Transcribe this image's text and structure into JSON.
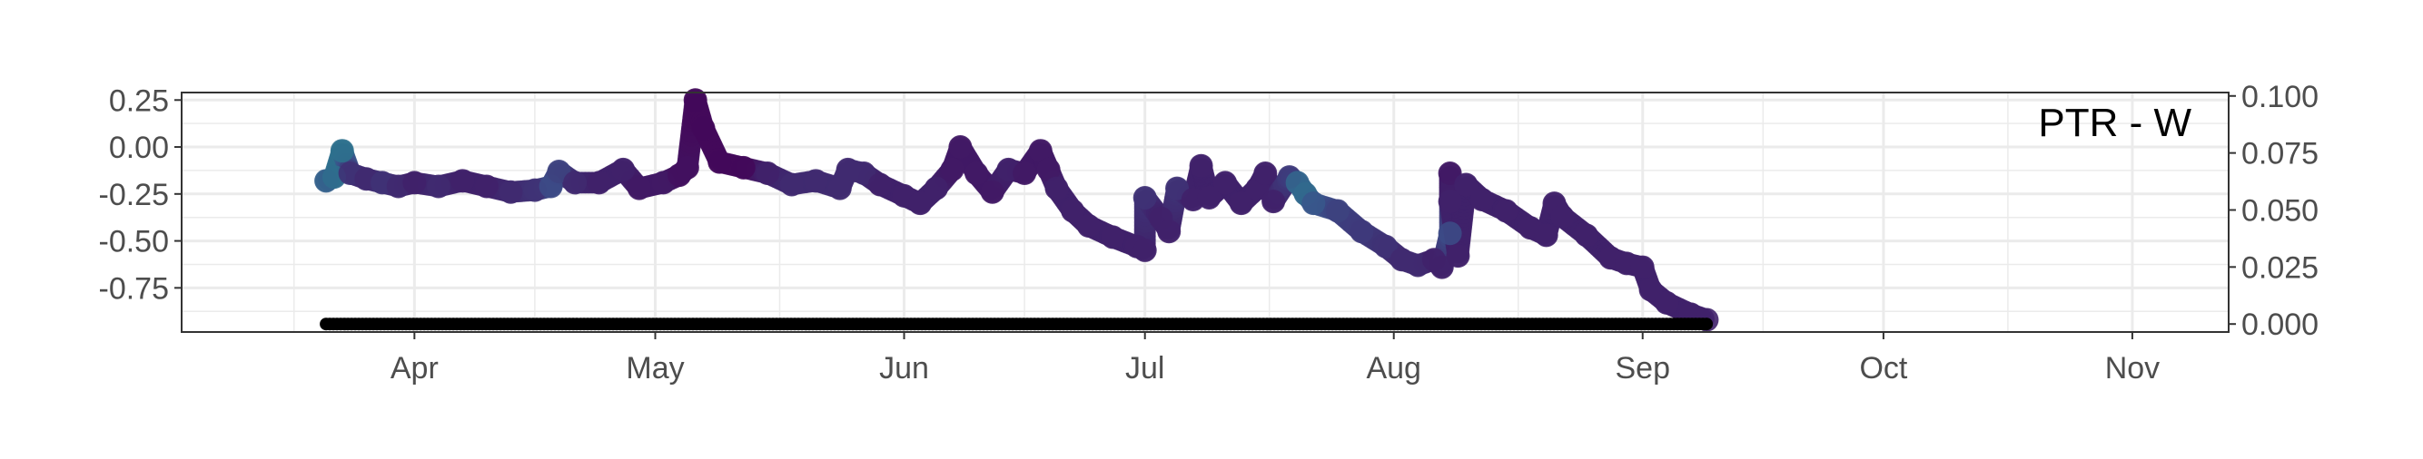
{
  "chart_data": {
    "type": "scatter",
    "title": "",
    "panel_label": "PTR - W",
    "xlabel": "",
    "ylabel": "",
    "x_axis": {
      "type": "date",
      "lim": [
        "2024-03-03",
        "2024-11-13"
      ],
      "ticks": [
        {
          "date": "2024-04-01",
          "label": "Apr"
        },
        {
          "date": "2024-05-01",
          "label": "May"
        },
        {
          "date": "2024-06-01",
          "label": "Jun"
        },
        {
          "date": "2024-07-01",
          "label": "Jul"
        },
        {
          "date": "2024-08-01",
          "label": "Aug"
        },
        {
          "date": "2024-09-01",
          "label": "Sep"
        },
        {
          "date": "2024-10-01",
          "label": "Oct"
        },
        {
          "date": "2024-11-01",
          "label": "Nov"
        }
      ]
    },
    "y_left": {
      "lim": [
        -0.985,
        0.29
      ],
      "ticks": [
        0.25,
        0.0,
        -0.25,
        -0.5,
        -0.75
      ],
      "tick_labels": [
        "0.25",
        "0.00",
        "-0.25",
        "-0.50",
        "-0.75"
      ]
    },
    "y_right": {
      "lim": [
        -0.0035,
        0.1015
      ],
      "ticks": [
        0.1,
        0.075,
        0.05,
        0.025,
        0.0
      ],
      "tick_labels": [
        "0.100",
        "0.075",
        "0.050",
        "0.025",
        "0.000"
      ]
    },
    "grid": true,
    "legend": "none",
    "colors": {
      "low": "#440154",
      "mid": "#3b528b",
      "high": "#2a788e",
      "zero_line": "#000000",
      "grid": "#ebebeb",
      "border": "#333333"
    },
    "series": [
      {
        "axis": "left",
        "style": "points-colored",
        "points": [
          [
            "2024-03-21",
            -0.18,
            0.7
          ],
          [
            "2024-03-22",
            -0.16,
            0.85
          ],
          [
            "2024-03-23",
            -0.02,
            0.9
          ],
          [
            "2024-03-24",
            -0.14,
            0.3
          ],
          [
            "2024-03-26",
            -0.17,
            0.25
          ],
          [
            "2024-03-28",
            -0.19,
            0.3
          ],
          [
            "2024-03-30",
            -0.21,
            0.25
          ],
          [
            "2024-04-01",
            -0.19,
            0.2
          ],
          [
            "2024-04-04",
            -0.21,
            0.25
          ],
          [
            "2024-04-07",
            -0.18,
            0.2
          ],
          [
            "2024-04-10",
            -0.21,
            0.2
          ],
          [
            "2024-04-13",
            -0.24,
            0.25
          ],
          [
            "2024-04-16",
            -0.23,
            0.3
          ],
          [
            "2024-04-18",
            -0.21,
            0.45
          ],
          [
            "2024-04-19",
            -0.13,
            0.4
          ],
          [
            "2024-04-21",
            -0.19,
            0.25
          ],
          [
            "2024-04-24",
            -0.19,
            0.2
          ],
          [
            "2024-04-27",
            -0.12,
            0.2
          ],
          [
            "2024-04-29",
            -0.22,
            0.15
          ],
          [
            "2024-05-02",
            -0.19,
            0.15
          ],
          [
            "2024-05-04",
            -0.15,
            0.1
          ],
          [
            "2024-05-05",
            -0.11,
            0.1
          ],
          [
            "2024-05-06",
            0.25,
            0.05
          ],
          [
            "2024-05-07",
            0.1,
            0.05
          ],
          [
            "2024-05-09",
            -0.08,
            0.05
          ],
          [
            "2024-05-12",
            -0.11,
            0.05
          ],
          [
            "2024-05-15",
            -0.14,
            0.2
          ],
          [
            "2024-05-18",
            -0.2,
            0.25
          ],
          [
            "2024-05-21",
            -0.18,
            0.25
          ],
          [
            "2024-05-24",
            -0.22,
            0.25
          ],
          [
            "2024-05-25",
            -0.12,
            0.25
          ],
          [
            "2024-05-27",
            -0.14,
            0.25
          ],
          [
            "2024-05-29",
            -0.2,
            0.2
          ],
          [
            "2024-06-01",
            -0.26,
            0.2
          ],
          [
            "2024-06-03",
            -0.3,
            0.2
          ],
          [
            "2024-06-05",
            -0.22,
            0.2
          ],
          [
            "2024-06-07",
            -0.12,
            0.15
          ],
          [
            "2024-06-08",
            0.0,
            0.15
          ],
          [
            "2024-06-10",
            -0.14,
            0.15
          ],
          [
            "2024-06-12",
            -0.24,
            0.15
          ],
          [
            "2024-06-14",
            -0.12,
            0.2
          ],
          [
            "2024-06-16",
            -0.14,
            0.15
          ],
          [
            "2024-06-18",
            -0.02,
            0.15
          ],
          [
            "2024-06-19",
            -0.12,
            0.15
          ],
          [
            "2024-06-20",
            -0.22,
            0.2
          ],
          [
            "2024-06-22",
            -0.34,
            0.2
          ],
          [
            "2024-06-24",
            -0.42,
            0.2
          ],
          [
            "2024-06-27",
            -0.48,
            0.2
          ],
          [
            "2024-06-30",
            -0.53,
            0.2
          ],
          [
            "2024-07-01",
            -0.55,
            0.2
          ],
          [
            "2024-07-01",
            -0.27,
            0.3
          ],
          [
            "2024-07-03",
            -0.38,
            0.2
          ],
          [
            "2024-07-04",
            -0.45,
            0.2
          ],
          [
            "2024-07-05",
            -0.22,
            0.3
          ],
          [
            "2024-07-07",
            -0.28,
            0.2
          ],
          [
            "2024-07-08",
            -0.1,
            0.2
          ],
          [
            "2024-07-09",
            -0.27,
            0.2
          ],
          [
            "2024-07-11",
            -0.19,
            0.2
          ],
          [
            "2024-07-13",
            -0.3,
            0.2
          ],
          [
            "2024-07-15",
            -0.22,
            0.2
          ],
          [
            "2024-07-16",
            -0.14,
            0.2
          ],
          [
            "2024-07-17",
            -0.29,
            0.2
          ],
          [
            "2024-07-19",
            -0.16,
            0.35
          ],
          [
            "2024-07-20",
            -0.19,
            0.75
          ],
          [
            "2024-07-21",
            -0.25,
            0.8
          ],
          [
            "2024-07-22",
            -0.3,
            0.55
          ],
          [
            "2024-07-25",
            -0.34,
            0.4
          ],
          [
            "2024-07-28",
            -0.45,
            0.35
          ],
          [
            "2024-07-31",
            -0.53,
            0.3
          ],
          [
            "2024-08-02",
            -0.6,
            0.25
          ],
          [
            "2024-08-04",
            -0.63,
            0.25
          ],
          [
            "2024-08-06",
            -0.6,
            0.2
          ],
          [
            "2024-08-07",
            -0.64,
            0.2
          ],
          [
            "2024-08-08",
            -0.46,
            0.45
          ],
          [
            "2024-08-09",
            -0.58,
            0.2
          ],
          [
            "2024-08-08",
            -0.14,
            0.15
          ],
          [
            "2024-08-08",
            -0.29,
            0.2
          ],
          [
            "2024-08-10",
            -0.2,
            0.2
          ],
          [
            "2024-08-12",
            -0.28,
            0.2
          ],
          [
            "2024-08-15",
            -0.34,
            0.2
          ],
          [
            "2024-08-18",
            -0.43,
            0.2
          ],
          [
            "2024-08-20",
            -0.47,
            0.2
          ],
          [
            "2024-08-21",
            -0.3,
            0.2
          ],
          [
            "2024-08-22",
            -0.37,
            0.2
          ],
          [
            "2024-08-25",
            -0.47,
            0.2
          ],
          [
            "2024-08-28",
            -0.59,
            0.2
          ],
          [
            "2024-08-30",
            -0.62,
            0.2
          ],
          [
            "2024-09-01",
            -0.64,
            0.2
          ],
          [
            "2024-09-02",
            -0.76,
            0.2
          ],
          [
            "2024-09-04",
            -0.83,
            0.2
          ],
          [
            "2024-09-07",
            -0.89,
            0.2
          ],
          [
            "2024-09-09",
            -0.92,
            0.2
          ]
        ]
      },
      {
        "axis": "right",
        "style": "points-black",
        "range": [
          "2024-03-21",
          "2024-09-09"
        ],
        "value": 0.0
      }
    ]
  }
}
